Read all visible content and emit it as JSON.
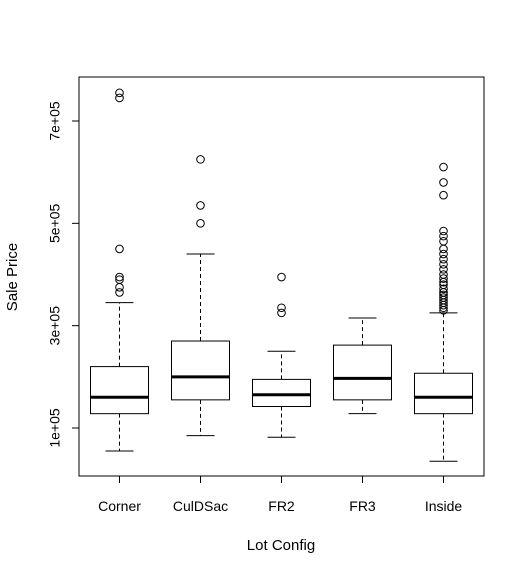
{
  "chart_data": {
    "type": "box",
    "title": "",
    "xlabel": "Lot Config",
    "ylabel": "Sale Price",
    "ylim": [
      0,
      780000
    ],
    "yticks": [
      100000,
      300000,
      500000,
      700000
    ],
    "ytick_labels": [
      "1e+05",
      "3e+05",
      "5e+05",
      "7e+05"
    ],
    "grid": false,
    "categories": [
      "Corner",
      "CulDSac",
      "FR2",
      "FR3",
      "Inside"
    ],
    "boxes": [
      {
        "min": 55000,
        "q1": 128000,
        "median": 160000,
        "q3": 220000,
        "max": 345000,
        "outliers": [
          365000,
          375000,
          390000,
          395000,
          450000,
          745000,
          755000
        ]
      },
      {
        "min": 85000,
        "q1": 155000,
        "median": 200000,
        "q3": 270000,
        "max": 440000,
        "outliers": [
          500000,
          535000,
          625000
        ]
      },
      {
        "min": 82000,
        "q1": 142000,
        "median": 165000,
        "q3": 195000,
        "max": 250000,
        "outliers": [
          325000,
          335000,
          395000
        ]
      },
      {
        "min": 128000,
        "q1": 155000,
        "median": 197000,
        "q3": 262000,
        "max": 315000,
        "outliers": []
      },
      {
        "min": 35000,
        "q1": 128000,
        "median": 160000,
        "q3": 207000,
        "max": 325000,
        "outliers": [
          330000,
          335000,
          340000,
          345000,
          350000,
          355000,
          360000,
          365000,
          372000,
          380000,
          385000,
          392000,
          400000,
          410000,
          420000,
          430000,
          440000,
          450000,
          465000,
          475000,
          485000,
          555000,
          580000,
          610000
        ]
      }
    ]
  }
}
